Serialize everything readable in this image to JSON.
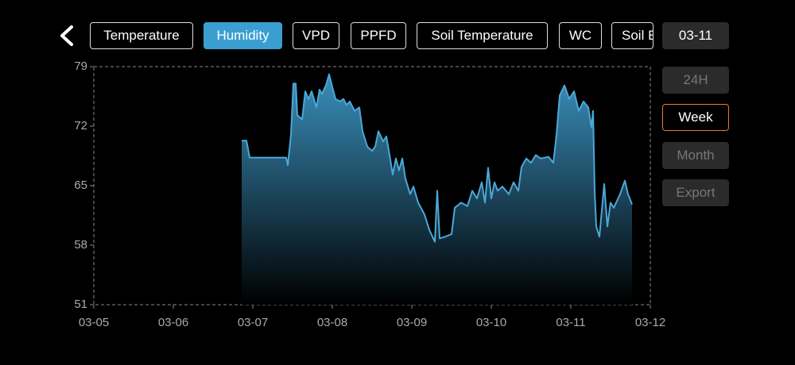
{
  "tabs": [
    "Temperature",
    "Humidity",
    "VPD",
    "PPFD",
    "Soil Temperature",
    "WC",
    "Soil EC"
  ],
  "active_tab": "Humidity",
  "date_button": "03-11",
  "range_buttons": [
    "24H",
    "Week",
    "Month",
    "Export"
  ],
  "active_range": "Week",
  "chart_data": {
    "type": "area",
    "x": [
      6.86,
      6.92,
      6.96,
      7.42,
      7.44,
      7.48,
      7.51,
      7.54,
      7.56,
      7.62,
      7.66,
      7.7,
      7.74,
      7.8,
      7.84,
      7.87,
      7.92,
      7.96,
      8.0,
      8.04,
      8.1,
      8.14,
      8.18,
      8.22,
      8.28,
      8.34,
      8.38,
      8.44,
      8.5,
      8.54,
      8.58,
      8.64,
      8.68,
      8.72,
      8.76,
      8.8,
      8.84,
      8.88,
      8.92,
      8.98,
      9.02,
      9.08,
      9.16,
      9.22,
      9.29,
      9.32,
      9.35,
      9.42,
      9.5,
      9.54,
      9.62,
      9.7,
      9.76,
      9.82,
      9.88,
      9.92,
      9.96,
      10.0,
      10.04,
      10.08,
      10.14,
      10.22,
      10.28,
      10.34,
      10.38,
      10.44,
      10.5,
      10.56,
      10.62,
      10.72,
      10.78,
      10.82,
      10.86,
      10.92,
      10.98,
      11.04,
      11.1,
      11.16,
      11.22,
      11.26,
      11.28,
      11.3,
      11.32,
      11.36,
      11.42,
      11.46,
      11.5,
      11.54,
      11.62,
      11.68,
      11.72,
      11.77
    ],
    "values": [
      70.3,
      70.3,
      68.3,
      68.3,
      67.4,
      71.0,
      77.0,
      77.0,
      73.3,
      72.8,
      76.1,
      75.2,
      76.1,
      74.2,
      76.3,
      75.8,
      76.8,
      78.1,
      76.6,
      75.2,
      74.9,
      75.2,
      74.5,
      74.9,
      73.8,
      74.2,
      71.4,
      69.6,
      69.1,
      69.6,
      71.4,
      70.2,
      70.8,
      68.6,
      66.3,
      68.2,
      66.8,
      68.2,
      65.8,
      64.0,
      64.9,
      63.0,
      61.6,
      59.8,
      58.4,
      64.4,
      58.8,
      59.0,
      59.3,
      62.4,
      63.0,
      62.6,
      64.4,
      63.5,
      65.4,
      63.0,
      67.1,
      63.5,
      65.4,
      64.4,
      64.9,
      64.0,
      65.4,
      64.4,
      67.2,
      68.2,
      67.7,
      68.6,
      68.2,
      68.4,
      67.7,
      71.0,
      75.6,
      76.8,
      75.2,
      76.1,
      73.8,
      74.9,
      74.2,
      71.9,
      73.8,
      64.4,
      60.2,
      59.0,
      65.2,
      60.2,
      63.0,
      62.4,
      64.0,
      65.6,
      64.0,
      62.8
    ],
    "color": "#4aa8d8",
    "xlim": [
      5,
      12
    ],
    "xticks": [
      {
        "value": 5,
        "label": "03-05"
      },
      {
        "value": 6,
        "label": "03-06"
      },
      {
        "value": 7,
        "label": "03-07"
      },
      {
        "value": 8,
        "label": "03-08"
      },
      {
        "value": 9,
        "label": "03-09"
      },
      {
        "value": 10,
        "label": "03-10"
      },
      {
        "value": 11,
        "label": "03-11"
      },
      {
        "value": 12,
        "label": "03-12"
      }
    ],
    "ylim": [
      51,
      79
    ],
    "yticks": [
      51,
      58,
      65,
      72,
      79
    ]
  }
}
